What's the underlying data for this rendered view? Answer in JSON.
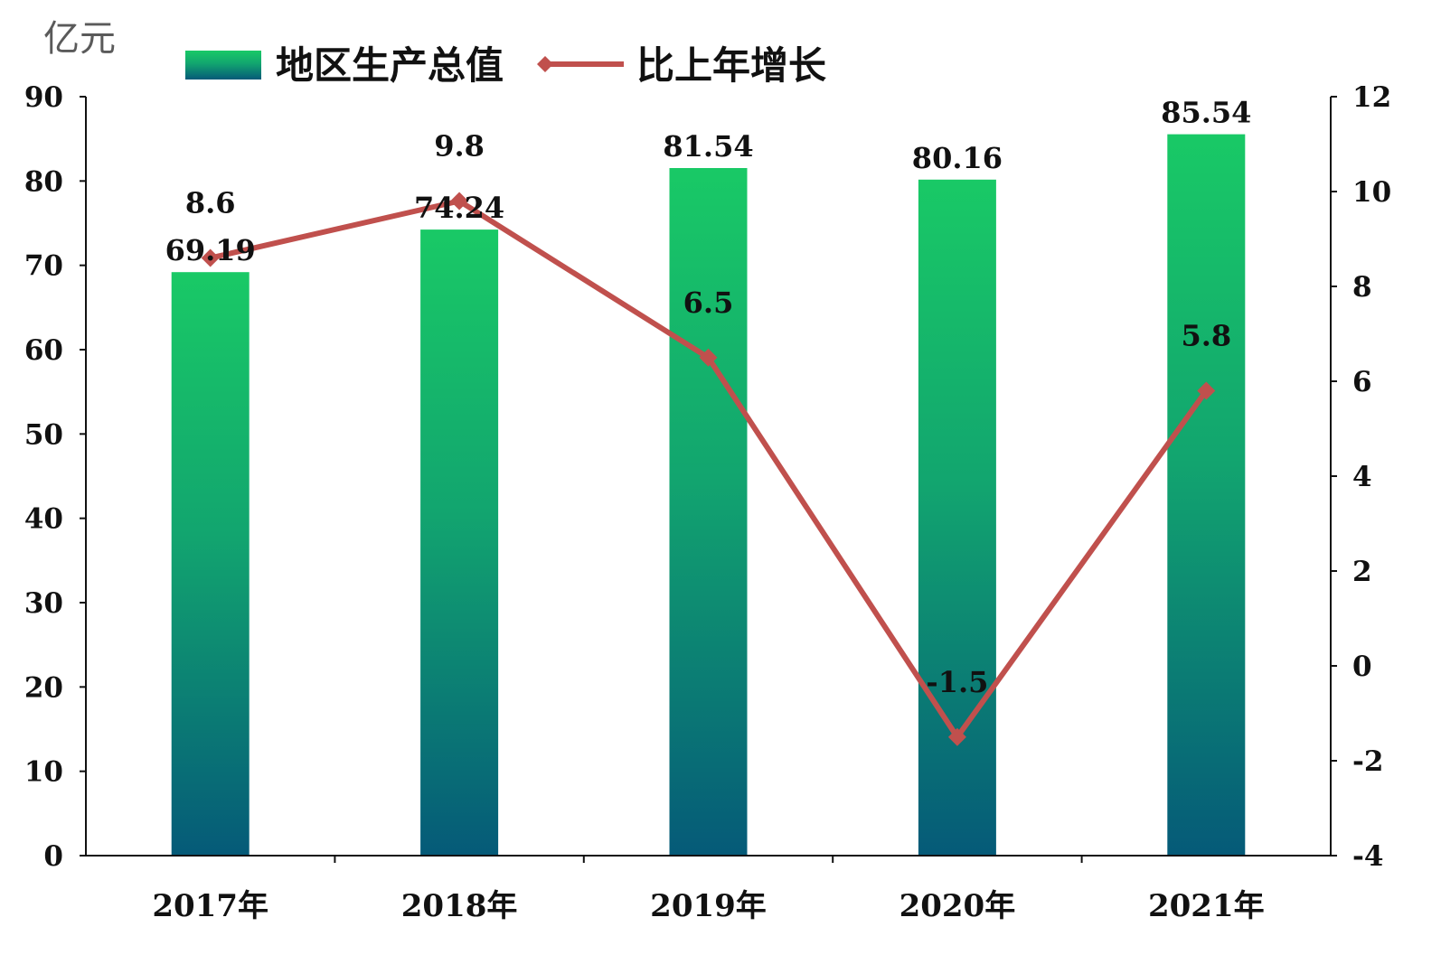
{
  "chart_data": {
    "type": "bar",
    "categories": [
      "2017年",
      "2018年",
      "2019年",
      "2020年",
      "2021年"
    ],
    "y_unit": "亿元",
    "ylim_left": [
      0,
      90
    ],
    "yticks_left": [
      "0",
      "10",
      "20",
      "30",
      "40",
      "50",
      "60",
      "70",
      "80",
      "90"
    ],
    "ylim_right": [
      -4,
      12
    ],
    "yticks_right": [
      "-4",
      "-2",
      "0",
      "2",
      "4",
      "6",
      "8",
      "10",
      "12"
    ],
    "series": [
      {
        "name": "地区生产总值",
        "type": "bar",
        "axis": "left",
        "values": [
          69.19,
          74.24,
          81.54,
          80.16,
          85.54
        ],
        "labels": [
          "69.19",
          "74.24",
          "81.54",
          "80.16",
          "85.54"
        ]
      },
      {
        "name": "比上年增长",
        "type": "line",
        "axis": "right",
        "values": [
          8.6,
          9.8,
          6.5,
          -1.5,
          5.8
        ],
        "labels": [
          "8.6",
          "9.8",
          "6.5",
          "-1.5",
          "5.8"
        ]
      }
    ],
    "grid": false,
    "legend_position": "top",
    "colors": {
      "bar_top": "#19c966",
      "bar_bottom": "#055a78",
      "line": "#c0504d",
      "axis": "#111111"
    }
  }
}
